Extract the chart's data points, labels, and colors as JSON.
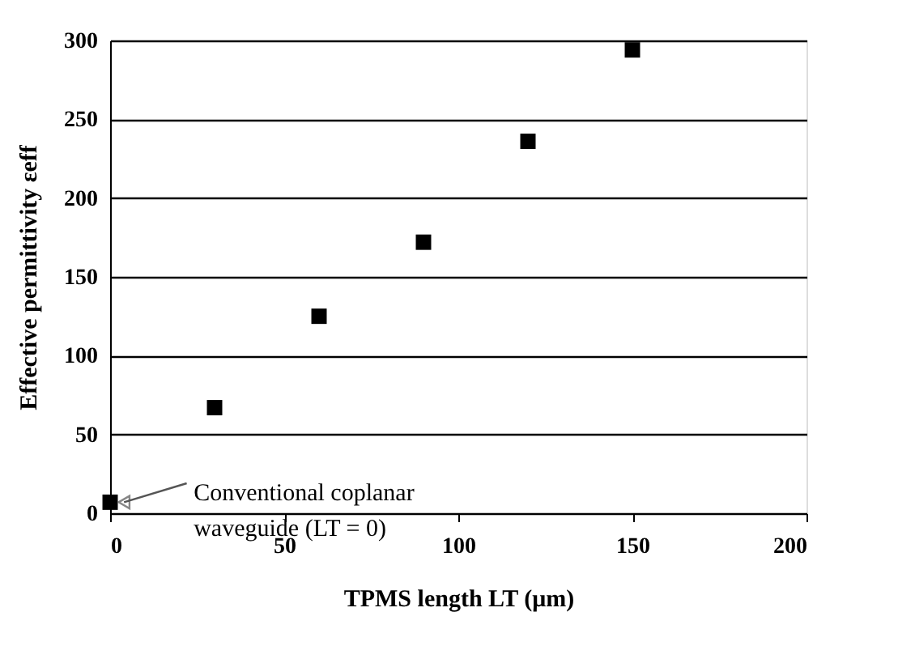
{
  "chart_data": {
    "type": "scatter",
    "xlabel": "TPMS length LT (μm)",
    "ylabel": "Effective permittivity εeff",
    "x": [
      0,
      30,
      60,
      90,
      120,
      150
    ],
    "series": [
      {
        "color": "#000000",
        "values": [
          7,
          67,
          125,
          172,
          236,
          294
        ]
      }
    ],
    "xlim": [
      0,
      200
    ],
    "xticks": [
      0,
      50,
      100,
      150,
      200
    ],
    "ylim": [
      0,
      300
    ],
    "yticks": [
      0,
      50,
      100,
      150,
      200,
      250,
      300
    ],
    "grid": "y",
    "marker": "square",
    "annotations": [
      {
        "text": "Conventional coplanar\nwaveguide (LT = 0)",
        "x": 0,
        "y": 7
      }
    ]
  }
}
